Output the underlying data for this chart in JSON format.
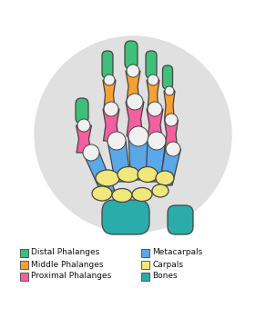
{
  "colors": {
    "distal": "#3EBF7A",
    "middle": "#F5A233",
    "proximal": "#F55FA0",
    "metacarpal": "#5BA8E8",
    "carpal": "#F0E87A",
    "bones": "#2AACAA",
    "joint": "#F0F0F0",
    "outline": "#444444",
    "background": "#FFFFFF",
    "watermark": "#E0E0E0"
  },
  "legend": [
    {
      "label": "Distal Phalanges",
      "color": "#3EBF7A"
    },
    {
      "label": "Middle Phalanges",
      "color": "#F5A233"
    },
    {
      "label": "Proximal Phalanges",
      "color": "#F55FA0"
    },
    {
      "label": "Metacarpals",
      "color": "#5BA8E8"
    },
    {
      "label": "Carpals",
      "color": "#F0E87A"
    },
    {
      "label": "Bones",
      "color": "#2AACAA"
    }
  ],
  "legend_fontsize": 6.5
}
